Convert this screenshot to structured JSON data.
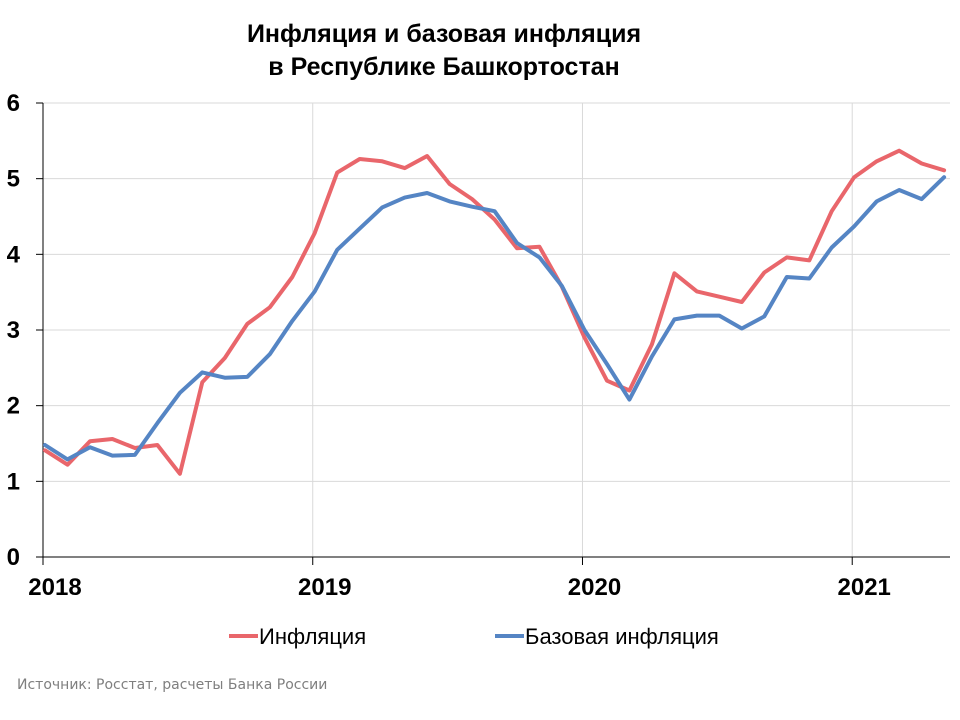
{
  "chart_data": {
    "type": "line",
    "title": [
      "Инфляция и базовая инфляция",
      "в  Республике Башкортостан"
    ],
    "xlabel": "",
    "ylabel": "",
    "ylim": [
      0,
      6
    ],
    "yticks": [
      "0",
      "1",
      "2",
      "3",
      "4",
      "5",
      "6"
    ],
    "xticks": [
      "2018",
      "2019",
      "2020",
      "2021"
    ],
    "x": [
      "01.2018",
      "02.2018",
      "03.2018",
      "04.2018",
      "05.2018",
      "06.2018",
      "07.2018",
      "08.2018",
      "09.2018",
      "10.2018",
      "11.2018",
      "12.2018",
      "01.2019",
      "02.2019",
      "03.2019",
      "04.2019",
      "05.2019",
      "06.2019",
      "07.2019",
      "08.2019",
      "09.2019",
      "10.2019",
      "11.2019",
      "12.2019",
      "01.2020",
      "02.2020",
      "03.2020",
      "04.2020",
      "05.2020",
      "06.2020",
      "07.2020",
      "08.2020",
      "09.2020",
      "10.2020",
      "11.2020",
      "12.2020",
      "01.2021",
      "02.2021",
      "03.2021",
      "04.2021",
      "05.2021"
    ],
    "grid": {
      "vertical": true,
      "horizontal": true
    },
    "legend_position": "bottom",
    "series": [
      {
        "name": "Инфляция",
        "color": "#e9666b",
        "values": [
          1.41,
          1.22,
          1.53,
          1.56,
          1.44,
          1.48,
          1.1,
          2.31,
          2.63,
          3.08,
          3.3,
          3.7,
          4.28,
          5.08,
          5.26,
          5.23,
          5.14,
          5.3,
          4.93,
          4.73,
          4.46,
          4.08,
          4.1,
          3.57,
          2.9,
          2.33,
          2.2,
          2.81,
          3.75,
          3.51,
          3.44,
          3.37,
          3.76,
          3.96,
          3.92,
          4.57,
          5.02,
          5.23,
          5.37,
          5.2,
          5.11
        ]
      },
      {
        "name": "Базовая инфляция",
        "color": "#5585c4",
        "values": [
          1.48,
          1.29,
          1.45,
          1.34,
          1.35,
          1.77,
          2.17,
          2.44,
          2.37,
          2.38,
          2.68,
          3.12,
          3.51,
          4.06,
          4.34,
          4.62,
          4.75,
          4.81,
          4.7,
          4.63,
          4.57,
          4.15,
          3.96,
          3.58,
          3.0,
          2.55,
          2.08,
          2.65,
          3.14,
          3.19,
          3.19,
          3.02,
          3.18,
          3.7,
          3.68,
          4.09,
          4.37,
          4.7,
          4.85,
          4.73,
          5.02
        ]
      }
    ]
  },
  "source": "Источник: Росстат, расчеты Банка России"
}
